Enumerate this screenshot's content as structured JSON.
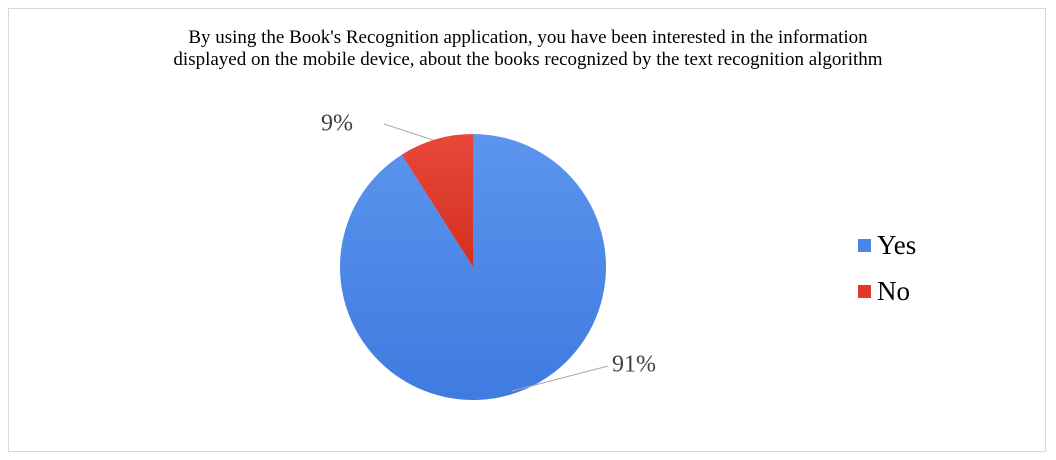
{
  "chart_data": {
    "type": "pie",
    "title_lines": [
      "By using the Book's Recognition application, you have been interested in the information",
      "displayed on the mobile device, about the books recognized by the text recognition algorithm"
    ],
    "categories": [
      "Yes",
      "No"
    ],
    "values": [
      91,
      9
    ],
    "data_labels": [
      "91%",
      "9%"
    ],
    "colors": [
      "#4A86E8",
      "#E0392B"
    ],
    "legend_position": "right"
  }
}
